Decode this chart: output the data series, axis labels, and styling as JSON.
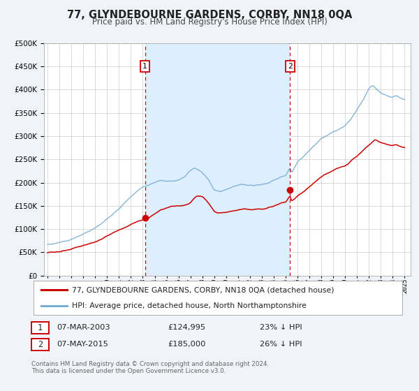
{
  "title": "77, GLYNDEBOURNE GARDENS, CORBY, NN18 0QA",
  "subtitle": "Price paid vs. HM Land Registry's House Price Index (HPI)",
  "legend_line1": "77, GLYNDEBOURNE GARDENS, CORBY, NN18 0QA (detached house)",
  "legend_line2": "HPI: Average price, detached house, North Northamptonshire",
  "footnote1": "Contains HM Land Registry data © Crown copyright and database right 2024.",
  "footnote2": "This data is licensed under the Open Government Licence v3.0.",
  "sale1_date": "07-MAR-2003",
  "sale1_price": "£124,995",
  "sale1_hpi": "23% ↓ HPI",
  "sale2_date": "07-MAY-2015",
  "sale2_price": "£185,000",
  "sale2_hpi": "26% ↓ HPI",
  "sale1_x": 2003.18,
  "sale1_y": 124995,
  "sale2_x": 2015.37,
  "sale2_y": 185000,
  "vline1_x": 2003.18,
  "vline2_x": 2015.37,
  "red_color": "#cc0000",
  "blue_color": "#7aafd4",
  "shade_color": "#ddeeff",
  "background_color": "#f0f4f8",
  "plot_bg_color": "#ffffff",
  "grid_color": "#cccccc",
  "ylim": [
    0,
    500000
  ],
  "xlim_start": 1994.7,
  "xlim_end": 2025.5
}
